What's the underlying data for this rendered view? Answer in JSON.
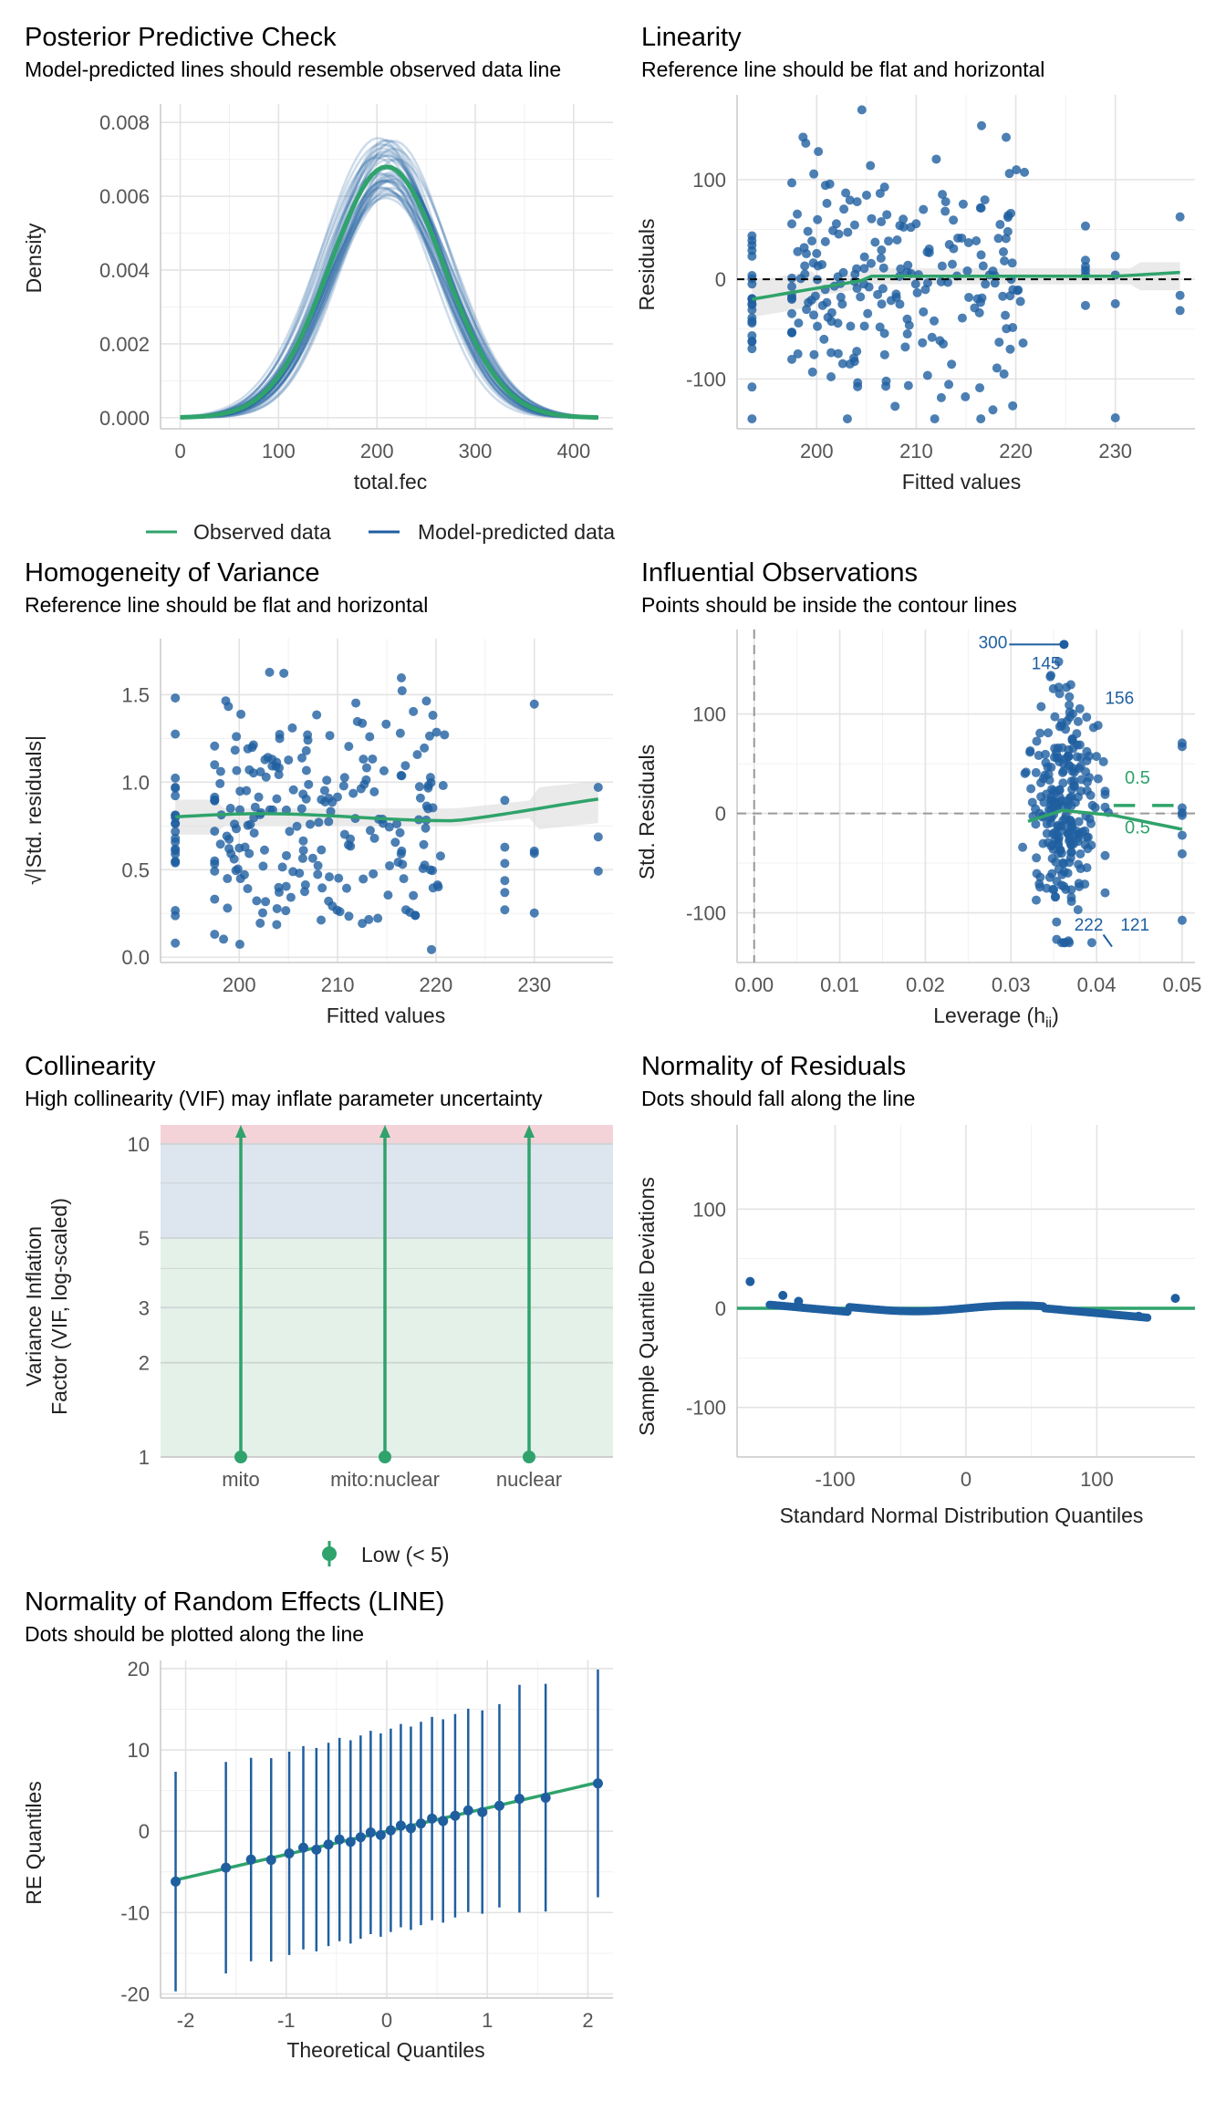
{
  "colors": {
    "blue": "#1f5fa0",
    "green": "#2fa36b",
    "red": "#f4d3d8",
    "bluezone": "#dde5ef",
    "greenzone": "#e3f1e9"
  },
  "chart_data": [
    {
      "type": "line",
      "id": "ppc",
      "title": "Posterior Predictive Check",
      "subtitle": "Model-predicted lines should resemble observed data line",
      "xlabel": "total.fec",
      "ylabel": "Density",
      "xticks": [
        "0",
        "100",
        "200",
        "300",
        "400"
      ],
      "yticks": [
        "0.000",
        "0.002",
        "0.004",
        "0.006",
        "0.008"
      ],
      "xlim": [
        -20,
        440
      ],
      "ylim": [
        -0.0003,
        0.0085
      ],
      "series": [
        {
          "name": "Observed data",
          "mean": 210,
          "sd": 58,
          "peak": 0.0068,
          "range": [
            0,
            425
          ]
        },
        {
          "name": "Model-predicted data",
          "mean": 210,
          "sd": 58,
          "peak": 0.0068,
          "range": [
            0,
            425
          ]
        }
      ],
      "legend": [
        "Observed data",
        "Model-predicted data"
      ]
    },
    {
      "type": "scatter",
      "id": "lin",
      "title": "Linearity",
      "subtitle": "Reference line should be flat and horizontal",
      "xlabel": "Fitted values",
      "ylabel": "Residuals",
      "xticks": [
        "200",
        "210",
        "220",
        "230"
      ],
      "yticks": [
        "-100",
        "0",
        "100"
      ],
      "xlim": [
        192,
        238
      ],
      "ylim": [
        -150,
        185
      ]
    },
    {
      "type": "scatter",
      "id": "hov",
      "title": "Homogeneity of Variance",
      "subtitle": "Reference line should be flat and horizontal",
      "xlabel": "Fitted values",
      "ylabel": "√|Std. residuals|",
      "xticks": [
        "200",
        "210",
        "220",
        "230"
      ],
      "yticks": [
        "0.0",
        "0.5",
        "1.0",
        "1.5"
      ],
      "xlim": [
        192,
        238
      ],
      "ylim": [
        -0.03,
        1.82
      ]
    },
    {
      "type": "scatter",
      "id": "inf",
      "title": "Influential Observations",
      "subtitle": "Points should be inside the contour lines",
      "xlabel": "Leverage (h",
      "xlabel_sub": "ii",
      "xlabel_end": ")",
      "ylabel": "Std. Residuals",
      "xticks": [
        "0.00",
        "0.01",
        "0.02",
        "0.03",
        "0.04",
        "0.05"
      ],
      "yticks": [
        "-100",
        "0",
        "100"
      ],
      "xlim": [
        -0.002,
        0.0515
      ],
      "ylim": [
        -150,
        185
      ],
      "labels": [
        "300",
        "145",
        "156",
        "222",
        "121"
      ],
      "contour_labels": [
        "0.5",
        "0.5"
      ]
    },
    {
      "type": "bar",
      "id": "col",
      "title": "Collinearity",
      "subtitle": "High collinearity (VIF) may inflate parameter uncertainty",
      "xlabel": "",
      "ylabel": "Variance Inflation",
      "ylabel2": "Factor (VIF, log-scaled)",
      "categories": [
        "mito",
        "mito:nuclear",
        "nuclear"
      ],
      "values": [
        1,
        1,
        1
      ],
      "yticks": [
        "1",
        "2",
        "3",
        "5",
        "10"
      ],
      "legend": [
        "Low (< 5)"
      ]
    },
    {
      "type": "scatter",
      "id": "nor",
      "title": "Normality of Residuals",
      "subtitle": "Dots should fall along the line",
      "xlabel": "Standard Normal Distribution Quantiles",
      "ylabel": "Sample Quantile Deviations",
      "xticks": [
        "-100",
        "0",
        "100"
      ],
      "yticks": [
        "-100",
        "0",
        "100"
      ],
      "xlim": [
        -175,
        175
      ],
      "ylim": [
        -150,
        185
      ]
    },
    {
      "type": "scatter",
      "id": "re",
      "title": "Normality of Random Effects (LINE)",
      "subtitle": "Dots should be plotted along the line",
      "xlabel": "Theoretical Quantiles",
      "ylabel": "RE Quantiles",
      "xticks": [
        "-2",
        "-1",
        "0",
        "1",
        "2"
      ],
      "yticks": [
        "-20",
        "-10",
        "0",
        "10",
        "20"
      ],
      "xlim": [
        -2.25,
        2.25
      ],
      "ylim": [
        -20.5,
        21
      ]
    }
  ]
}
